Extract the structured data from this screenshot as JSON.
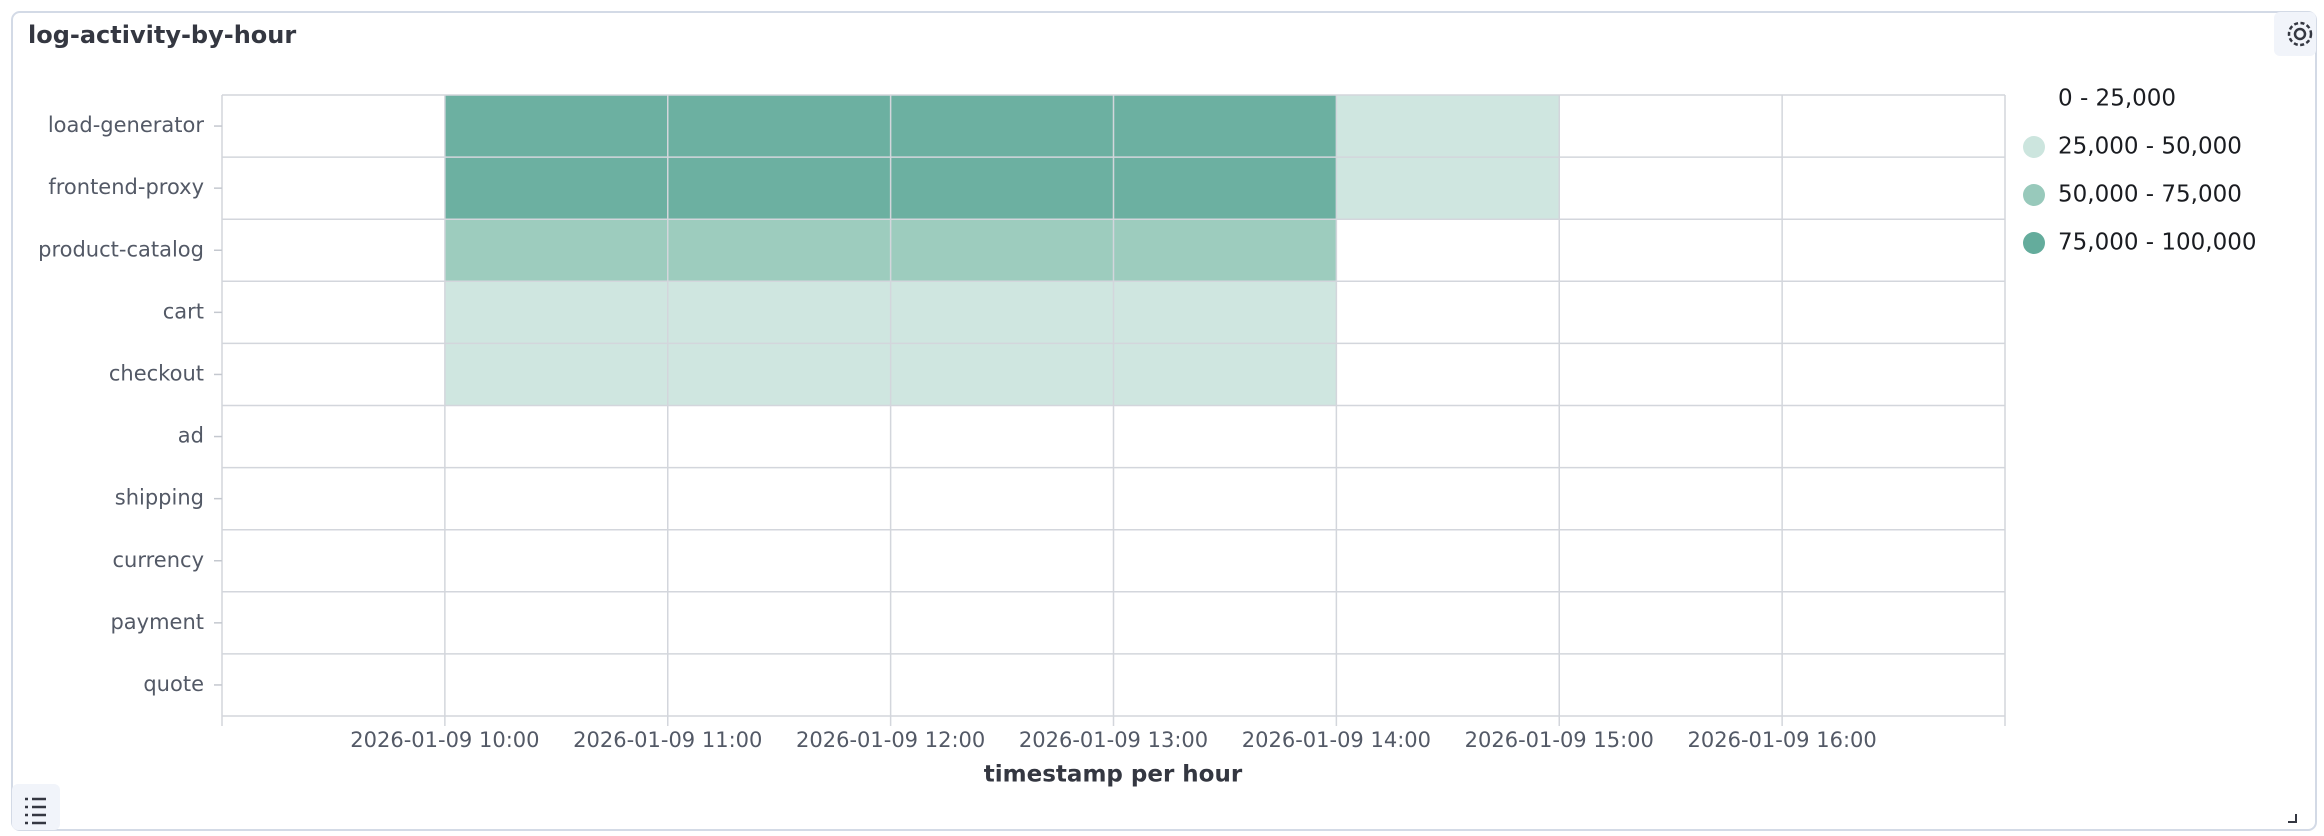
{
  "chart_data": {
    "type": "heatmap",
    "title": "log-activity-by-hour",
    "x_title": "timestamp per hour",
    "columns": [
      null,
      "2026-01-09 10:00",
      "2026-01-09 11:00",
      "2026-01-09 12:00",
      "2026-01-09 13:00",
      "2026-01-09 14:00",
      "2026-01-09 15:00",
      "2026-01-09 16:00"
    ],
    "series": [
      {
        "name": "load-generator",
        "values": [
          null,
          87500,
          87500,
          87500,
          87500,
          37500,
          null,
          null
        ]
      },
      {
        "name": "frontend-proxy",
        "values": [
          null,
          87500,
          87500,
          87500,
          87500,
          37500,
          null,
          null
        ]
      },
      {
        "name": "product-catalog",
        "values": [
          null,
          62500,
          62500,
          62500,
          62500,
          null,
          null,
          null
        ]
      },
      {
        "name": "cart",
        "values": [
          null,
          37500,
          37500,
          37500,
          37500,
          null,
          null,
          null
        ]
      },
      {
        "name": "checkout",
        "values": [
          null,
          37500,
          37500,
          37500,
          37500,
          null,
          null,
          null
        ]
      },
      {
        "name": "ad",
        "values": [
          null,
          null,
          null,
          null,
          null,
          null,
          null,
          null
        ]
      },
      {
        "name": "shipping",
        "values": [
          null,
          null,
          null,
          null,
          null,
          null,
          null,
          null
        ]
      },
      {
        "name": "currency",
        "values": [
          null,
          null,
          null,
          null,
          null,
          null,
          null,
          null
        ]
      },
      {
        "name": "payment",
        "values": [
          null,
          null,
          null,
          null,
          null,
          null,
          null,
          null
        ]
      },
      {
        "name": "quote",
        "values": [
          null,
          null,
          null,
          null,
          null,
          null,
          null,
          null
        ]
      }
    ],
    "color_ranges": [
      {
        "from": 0,
        "to": 25000,
        "label": "0 - 25,000",
        "color": "#ffffff"
      },
      {
        "from": 25000,
        "to": 50000,
        "label": "25,000 - 50,000",
        "color": "#cce5de"
      },
      {
        "from": 50000,
        "to": 75000,
        "label": "50,000 - 75,000",
        "color": "#98c9bb"
      },
      {
        "from": 75000,
        "to": 100000,
        "label": "75,000 - 100,000",
        "color": "#64ac9c"
      }
    ],
    "grid": true
  }
}
